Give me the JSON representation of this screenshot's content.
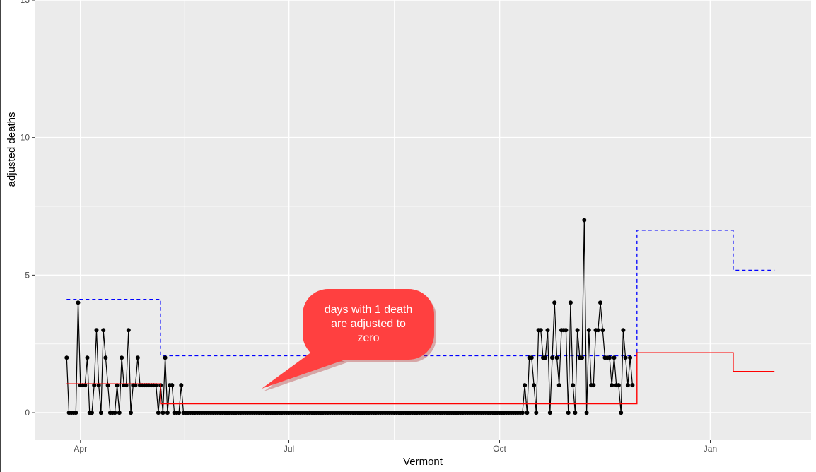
{
  "chart_data": {
    "type": "line",
    "xlabel": "Vermont",
    "ylabel": "adjusted deaths",
    "x_ticks": [
      {
        "label": "Apr",
        "date": "2020-04-01"
      },
      {
        "label": "Jul",
        "date": "2020-07-01"
      },
      {
        "label": "Oct",
        "date": "2020-10-01"
      },
      {
        "label": "Jan",
        "date": "2021-01-01"
      }
    ],
    "xlim": [
      "2020-03-12",
      "2021-02-14"
    ],
    "ylim": [
      -1,
      15
    ],
    "y_ticks": [
      0,
      5,
      10,
      15
    ],
    "grid": true,
    "colors": {
      "panel": "#ebebeb",
      "grid": "#ffffff",
      "daily": "#000000",
      "fitted": "#ff0000",
      "threshold": "#0000ff",
      "callout": "#ff4040"
    },
    "annotation": {
      "text_lines": [
        "days with 1 death",
        "are adjusted to",
        "zero"
      ]
    },
    "series": [
      {
        "style": "solid black line with points",
        "start_date": "2020-03-26",
        "values": [
          2,
          0,
          0,
          0,
          0,
          4,
          1,
          1,
          1,
          2,
          0,
          0,
          1,
          3,
          1,
          0,
          3,
          2,
          1,
          0,
          0,
          0,
          1,
          0,
          2,
          1,
          1,
          3,
          0,
          1,
          1,
          2,
          1,
          1,
          1,
          1,
          1,
          1,
          1,
          1,
          0,
          1,
          0,
          2,
          0,
          1,
          1,
          0,
          0,
          0,
          1,
          0,
          0,
          0,
          0,
          0,
          0,
          0,
          0,
          0,
          0,
          0,
          0,
          0,
          0,
          0,
          0,
          0,
          0,
          0,
          0,
          0,
          0,
          0,
          0,
          0,
          0,
          0,
          0,
          0,
          0,
          0,
          0,
          0,
          0,
          0,
          0,
          0,
          0,
          0,
          0,
          0,
          0,
          0,
          0,
          0,
          0,
          0,
          0,
          0,
          0,
          0,
          0,
          0,
          0,
          0,
          0,
          0,
          0,
          0,
          0,
          0,
          0,
          0,
          0,
          0,
          0,
          0,
          0,
          0,
          0,
          0,
          0,
          0,
          0,
          0,
          0,
          0,
          0,
          0,
          0,
          0,
          0,
          0,
          0,
          0,
          0,
          0,
          0,
          0,
          0,
          0,
          0,
          0,
          0,
          0,
          0,
          0,
          0,
          0,
          0,
          0,
          0,
          0,
          0,
          0,
          0,
          0,
          0,
          0,
          0,
          0,
          0,
          0,
          0,
          0,
          0,
          0,
          0,
          0,
          0,
          0,
          0,
          0,
          0,
          0,
          0,
          0,
          0,
          0,
          0,
          0,
          0,
          0,
          0,
          0,
          0,
          0,
          0,
          0,
          0,
          0,
          0,
          0,
          0,
          0,
          0,
          0,
          0,
          0,
          1,
          0,
          2,
          2,
          1,
          0,
          3,
          3,
          2,
          2,
          3,
          0,
          2,
          4,
          2,
          1,
          3,
          3,
          3,
          0,
          4,
          1,
          0,
          3,
          2,
          2,
          7,
          0,
          3,
          1,
          1,
          3,
          3,
          4,
          3,
          2,
          2,
          2,
          1,
          2,
          1,
          1,
          0,
          3,
          2,
          1,
          2,
          1
        ]
      },
      {
        "style": "solid red step line",
        "steps": [
          {
            "start": "2020-03-26",
            "end": "2020-05-05",
            "value": 1.05
          },
          {
            "start": "2020-05-06",
            "end": "2020-11-29",
            "value": 0.32
          },
          {
            "start": "2020-11-30",
            "end": "2021-01-10",
            "value": 2.18
          },
          {
            "start": "2021-01-11",
            "end": "2021-01-28",
            "value": 1.5
          }
        ]
      },
      {
        "style": "dashed blue step line",
        "steps": [
          {
            "start": "2020-03-26",
            "end": "2020-05-05",
            "value": 4.12
          },
          {
            "start": "2020-05-06",
            "end": "2020-11-29",
            "value": 2.07
          },
          {
            "start": "2020-11-30",
            "end": "2021-01-10",
            "value": 6.63
          },
          {
            "start": "2021-01-11",
            "end": "2021-01-28",
            "value": 5.18
          }
        ]
      }
    ]
  }
}
